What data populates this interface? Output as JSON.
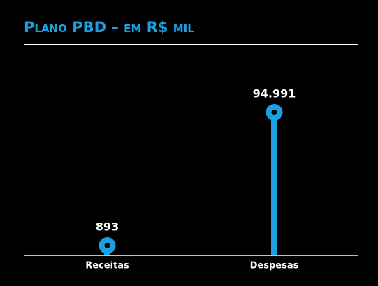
{
  "chart_data": {
    "type": "lollipop",
    "title": "Plano PBD – em R$ mil",
    "categories": [
      "Receitas",
      "Despesas"
    ],
    "values": [
      893,
      94991
    ],
    "value_labels": [
      "893",
      "94.991"
    ],
    "color": "#1ba1e2",
    "ylim": [
      -6000,
      100000
    ]
  }
}
